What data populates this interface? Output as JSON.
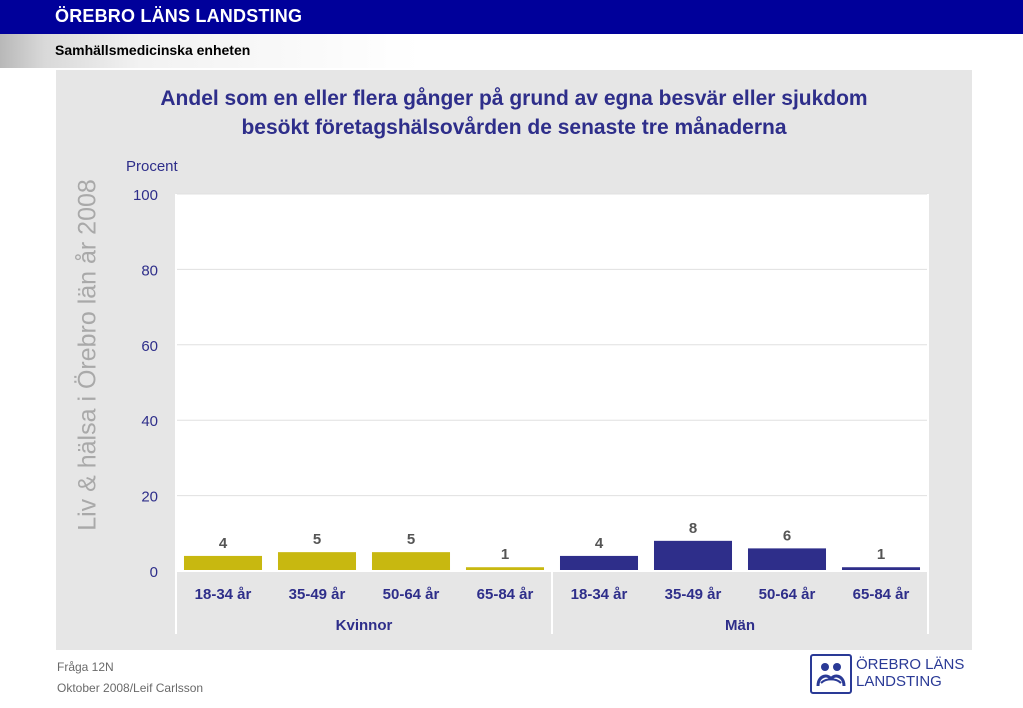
{
  "header": {
    "organization": "ÖREBRO LÄNS LANDSTING",
    "unit": "Samhällsmedicinska enheten"
  },
  "watermark": "Liv & hälsa i Örebro län år 2008",
  "footer": {
    "question": "Fråga 12N",
    "date_author": "Oktober 2008/Leif Carlsson"
  },
  "logo": {
    "line1": "ÖREBRO LÄNS",
    "line2": "LANDSTING",
    "icon": "landsting-emblem-icon"
  },
  "colors": {
    "header_bar": "#00009a",
    "title_text": "#2e2e8a",
    "women_bars": "#c8b810",
    "men_bars": "#2e2e8a",
    "panel_background": "#e6e6e6",
    "plot_background": "#ffffff"
  },
  "chart_data": {
    "type": "bar",
    "title_lines": [
      "Andel som en eller flera gånger på grund av egna besvär eller sjukdom",
      "besökt företagshälsovården de senaste tre månaderna"
    ],
    "ylabel": "Procent",
    "ylim": [
      0,
      100
    ],
    "yticks": [
      0,
      20,
      40,
      60,
      80,
      100
    ],
    "grid": true,
    "legend": "none",
    "groups": [
      {
        "name": "Kvinnor",
        "color": "#c8b810",
        "categories": [
          "18-34 år",
          "35-49 år",
          "50-64 år",
          "65-84 år"
        ],
        "values": [
          4,
          5,
          5,
          1
        ],
        "value_labels": [
          "4",
          "5",
          "5",
          "1"
        ]
      },
      {
        "name": "Män",
        "color": "#2e2e8a",
        "categories": [
          "18-34 år",
          "35-49 år",
          "50-64 år",
          "65-84 år"
        ],
        "values": [
          4,
          8,
          6,
          1
        ],
        "value_labels": [
          "4",
          "8",
          "6",
          "1"
        ]
      }
    ]
  }
}
